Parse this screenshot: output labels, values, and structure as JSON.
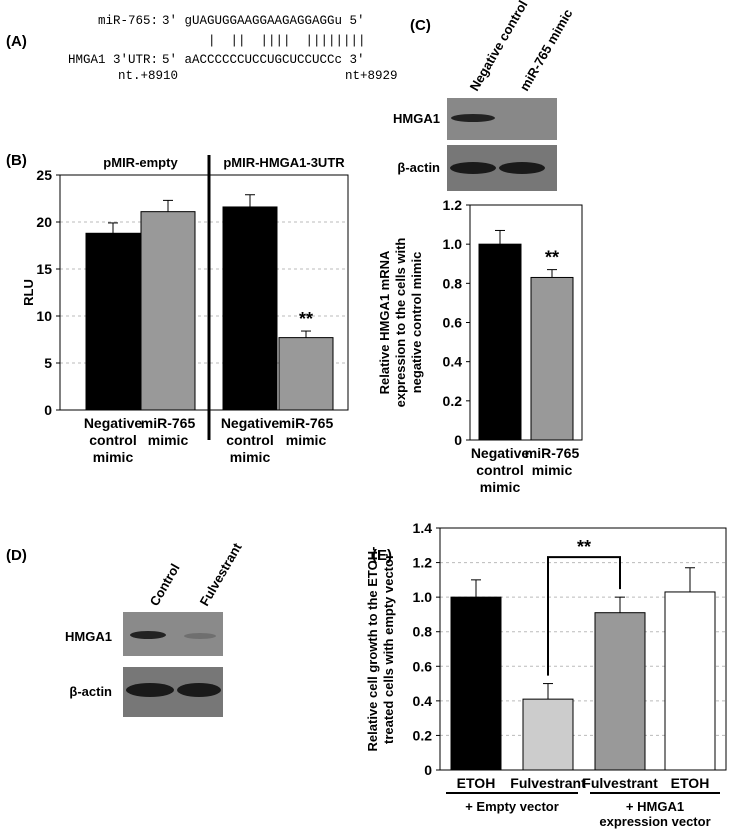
{
  "panel_labels": [
    "(A)",
    "(B)",
    "(C)",
    "(D)",
    "(E)"
  ],
  "sequence_alignment": {
    "mirna_label": "miR-765:",
    "mirna_seq": "3' gUAGUGGAAGGAAGAGGAGGu 5'",
    "pairing": "|  ||  ||||  ||||||||",
    "utr_label": "HMGA1 3'UTR:",
    "utr_seq": "5' aACCCCCCUCCUGCUCCUCCc 3'",
    "start": "nt.+8910",
    "end": "nt+8929"
  },
  "blots": [
    {
      "lanes": [
        "Negative control mimic",
        "miR-765 mimic"
      ],
      "rows": [
        "HMGA1",
        "β-actin"
      ]
    },
    {
      "lanes": [
        "Control",
        "Fulvestrant"
      ],
      "rows": [
        "HMGA1",
        "β-actin"
      ]
    }
  ],
  "chart_data": [
    {
      "type": "bar",
      "group_labels": [
        "pMIR-empty",
        "pMIR-HMGA1-3UTR"
      ],
      "ylabel": [
        "RLU"
      ],
      "categories": [
        [
          "Negative",
          "control",
          "mimic"
        ],
        [
          "miR-765",
          "mimic"
        ],
        [
          "Negative",
          "control",
          "mimic"
        ],
        [
          "miR-765",
          "mimic"
        ]
      ],
      "values": [
        18.8,
        21.1,
        21.6,
        7.7
      ],
      "errors": [
        1.1,
        1.2,
        1.3,
        0.7
      ],
      "colors": [
        "#000000",
        "#999999",
        "#000000",
        "#999999"
      ],
      "ylim": [
        0,
        25
      ],
      "yticks": [
        0,
        5,
        10,
        15,
        20,
        25
      ],
      "grid": true,
      "annotation": "**"
    },
    {
      "type": "bar",
      "ylabel": [
        "Relative HMGA1 mRNA",
        "expression to the cells with",
        "negative control mimic"
      ],
      "categories": [
        [
          "Negative",
          "control",
          "mimic"
        ],
        [
          "miR-765",
          "mimic"
        ]
      ],
      "values": [
        1.0,
        0.83
      ],
      "errors": [
        0.07,
        0.04
      ],
      "colors": [
        "#000000",
        "#999999"
      ],
      "ylim": [
        0,
        1.2
      ],
      "yticks": [
        0,
        0.2,
        0.4,
        0.6,
        0.8,
        {
          "value": 1,
          "label": "1.0"
        },
        1.2
      ],
      "grid": false,
      "annotation": "**"
    },
    {
      "type": "bar",
      "ylabel": [
        "Relative cell growth to the ETOH-",
        "treated cells with empty vector"
      ],
      "categories": [
        [
          "ETOH"
        ],
        [
          "Fulvestrant"
        ],
        [
          "Fulvestrant"
        ],
        [
          "ETOH"
        ]
      ],
      "group_labels": [
        [
          "+ Empty vector"
        ],
        [
          "+ HMGA1",
          "expression vector"
        ]
      ],
      "values": [
        1.0,
        0.41,
        0.91,
        1.03
      ],
      "errors": [
        0.1,
        0.09,
        0.09,
        0.14
      ],
      "colors": [
        "#000000",
        "#cccccc",
        "#999999",
        "#ffffff"
      ],
      "ylim": [
        0,
        1.4
      ],
      "yticks": [
        0,
        0.2,
        0.4,
        0.6,
        0.8,
        {
          "value": 1,
          "label": "1.0"
        },
        1.2,
        1.4
      ],
      "grid": true,
      "annotation": "**"
    }
  ]
}
